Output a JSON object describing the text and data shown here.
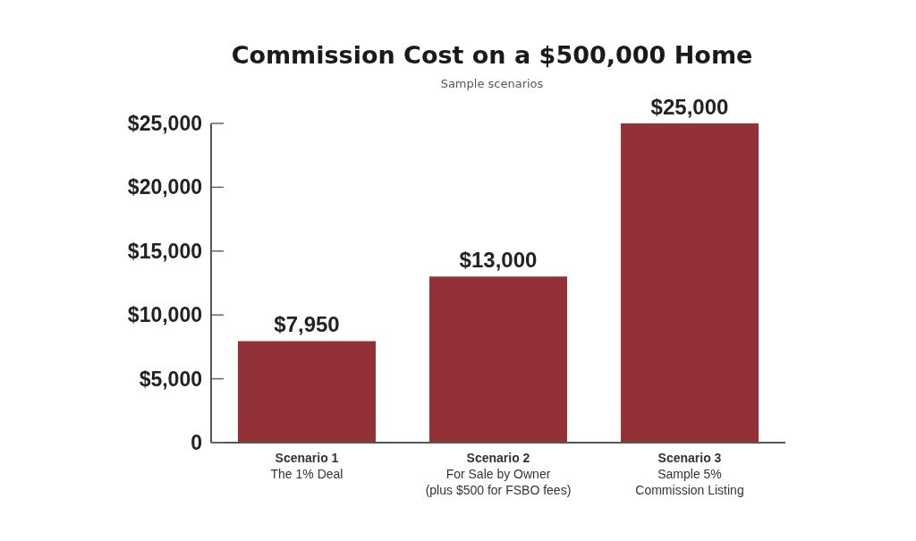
{
  "chart_data": {
    "type": "bar",
    "title": "Commission Cost on a $500,000 Home",
    "subtitle": "Sample scenarios",
    "categories": [
      "Scenario 1\nThe 1% Deal",
      "Scenario 2\nFor Sale by Owner\n(plus $500 for FSBO fees)",
      "Scenario 3\nSample 5%\nCommission Listing"
    ],
    "values": [
      7950,
      13000,
      25000
    ],
    "value_labels": [
      "$7,950",
      "$13,000",
      "$25,000"
    ],
    "color": "#933236",
    "ylim": [
      0,
      25000
    ],
    "yticks": [
      0,
      {
        "value": 5000,
        "label": "$5,000"
      },
      {
        "value": 10000,
        "label": "$10,000"
      },
      {
        "value": 15000,
        "label": "$15,000"
      },
      {
        "value": 20000,
        "label": "$20,000"
      },
      {
        "value": 25000,
        "label": "$25,000"
      }
    ]
  }
}
